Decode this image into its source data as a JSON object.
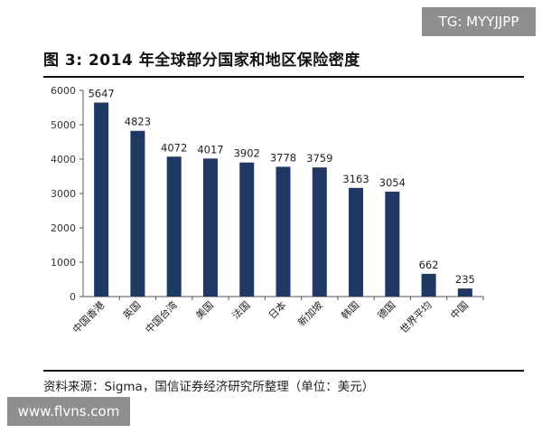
{
  "watermark_top": "TG: MYYJJPP",
  "watermark_bottom": "www.flvns.com",
  "source": "资料来源：Sigma，国信证券经济研究所整理（单位：美元）",
  "chart_data": {
    "type": "bar",
    "title": "图 3:  2014 年全球部分国家和地区保险密度",
    "xlabel": "",
    "ylabel": "",
    "categories": [
      "中国香港",
      "英国",
      "中国台湾",
      "美国",
      "法国",
      "日本",
      "新加坡",
      "韩国",
      "德国",
      "世界平均",
      "中国"
    ],
    "values": [
      5647,
      4823,
      4072,
      4017,
      3902,
      3778,
      3759,
      3163,
      3054,
      662,
      235
    ],
    "ylim": [
      0,
      6000
    ],
    "yticks": [
      0,
      1000,
      2000,
      3000,
      4000,
      5000,
      6000
    ],
    "grid": false,
    "legend": "none",
    "colors": {
      "bar": "#1f3864",
      "axis": "#555555"
    }
  }
}
